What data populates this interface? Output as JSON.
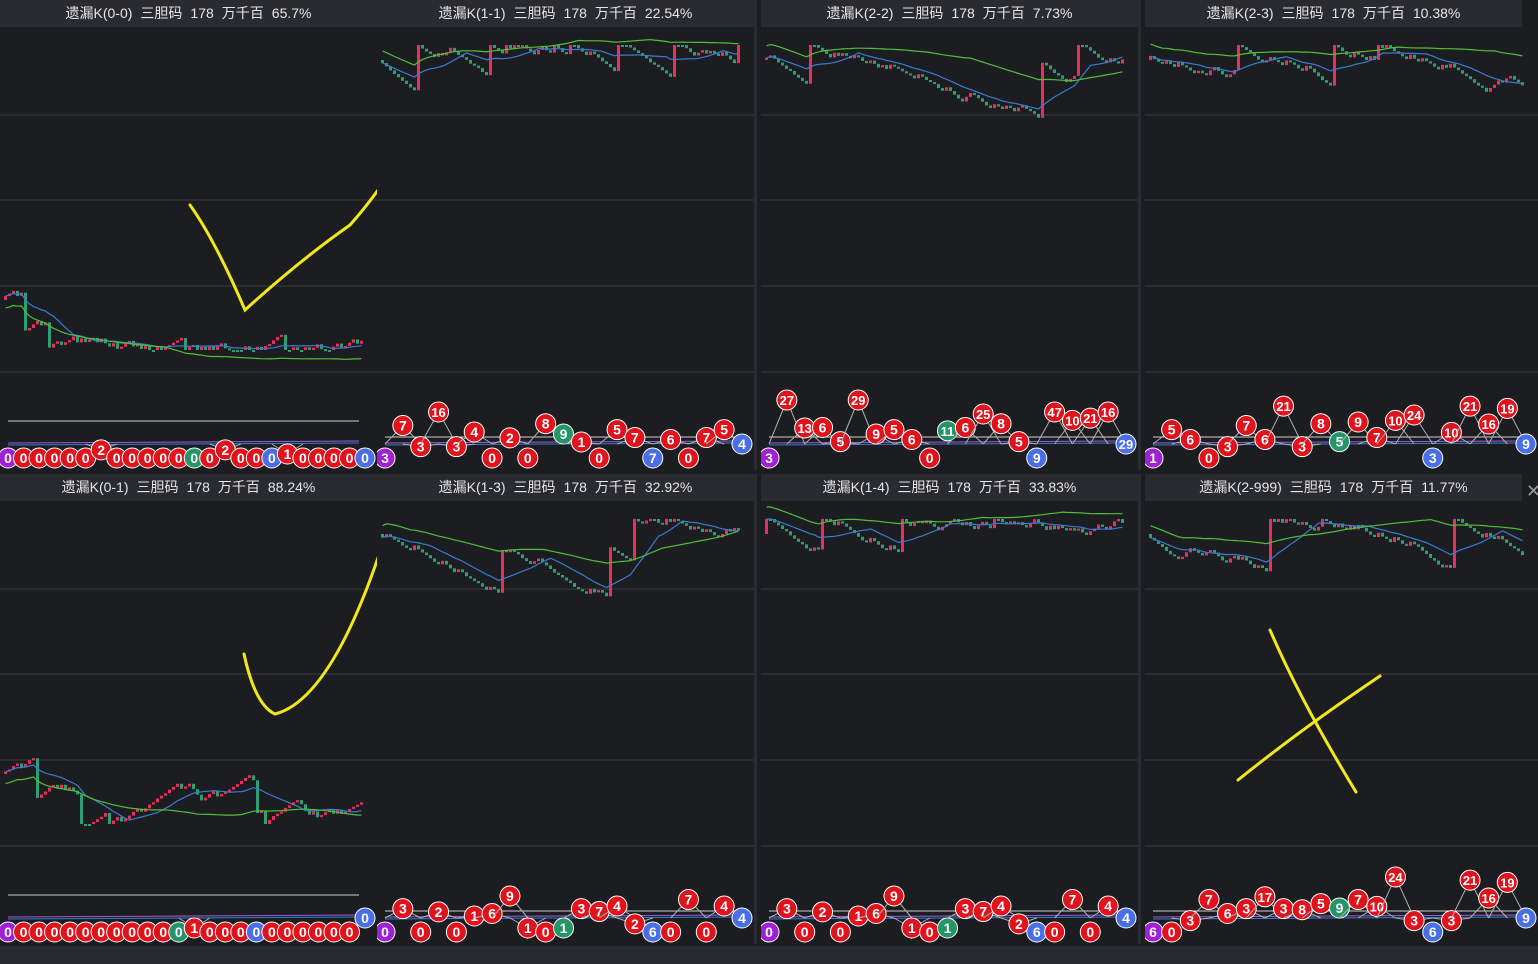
{
  "panels": [
    {
      "title": "遗漏K(0-0)",
      "code": "三胆码",
      "num": "178",
      "pos": "万千百",
      "pct": "65.7%",
      "bubbles": [
        0,
        0,
        0,
        0,
        0,
        0,
        2,
        0,
        0,
        0,
        0,
        0,
        0,
        0,
        2,
        0,
        0,
        0,
        1,
        0,
        0,
        0,
        0,
        0
      ],
      "bubble_types": [
        "p",
        "r",
        "r",
        "r",
        "r",
        "r",
        "r",
        "r",
        "r",
        "r",
        "r",
        "r",
        "g",
        "r",
        "r",
        "r",
        "r",
        "b",
        "r",
        "r",
        "r",
        "r",
        "r",
        "b"
      ]
    },
    {
      "title": "遗漏K(1-1)",
      "code": "三胆码",
      "num": "178",
      "pos": "万千百",
      "pct": "22.54%",
      "bubbles": [
        3,
        7,
        3,
        16,
        3,
        4,
        0,
        2,
        0,
        8,
        9,
        1,
        0,
        5,
        7,
        7,
        6,
        0,
        7,
        5,
        4
      ],
      "bubble_types": [
        "p",
        "r",
        "r",
        "r",
        "r",
        "r",
        "r",
        "r",
        "r",
        "r",
        "g",
        "r",
        "r",
        "r",
        "r",
        "b",
        "r",
        "r",
        "r",
        "r",
        "b"
      ]
    },
    {
      "title": "遗漏K(2-2)",
      "code": "三胆码",
      "num": "178",
      "pos": "万千百",
      "pct": "7.73%",
      "bubbles": [
        3,
        27,
        13,
        6,
        5,
        29,
        9,
        5,
        6,
        0,
        11,
        6,
        25,
        8,
        5,
        9,
        47,
        10,
        21,
        16,
        29
      ],
      "bubble_types": [
        "p",
        "r",
        "r",
        "r",
        "r",
        "r",
        "r",
        "r",
        "r",
        "r",
        "g",
        "r",
        "r",
        "r",
        "r",
        "b",
        "r",
        "r",
        "r",
        "r",
        "b"
      ]
    },
    {
      "title": "遗漏K(2-3)",
      "code": "三胆码",
      "num": "178",
      "pos": "万千百",
      "pct": "10.38%",
      "bubbles": [
        1,
        5,
        6,
        0,
        3,
        7,
        6,
        21,
        3,
        8,
        5,
        9,
        7,
        10,
        24,
        3,
        10,
        21,
        16,
        19,
        9
      ],
      "bubble_types": [
        "p",
        "r",
        "r",
        "r",
        "r",
        "r",
        "r",
        "r",
        "r",
        "r",
        "g",
        "r",
        "r",
        "r",
        "r",
        "b",
        "r",
        "r",
        "r",
        "r",
        "b"
      ]
    },
    {
      "title": "遗漏K(0-1)",
      "code": "三胆码",
      "num": "178",
      "pos": "万千百",
      "pct": "88.24%",
      "bubbles": [
        0,
        0,
        0,
        0,
        0,
        0,
        0,
        0,
        0,
        0,
        0,
        0,
        1,
        0,
        0,
        0,
        0,
        0,
        0,
        0,
        0,
        0,
        0,
        0
      ],
      "bubble_types": [
        "p",
        "r",
        "r",
        "r",
        "r",
        "r",
        "r",
        "r",
        "r",
        "r",
        "r",
        "g",
        "r",
        "r",
        "r",
        "r",
        "b",
        "r",
        "r",
        "r",
        "r",
        "r",
        "r",
        "b"
      ]
    },
    {
      "title": "遗漏K(1-3)",
      "code": "三胆码",
      "num": "178",
      "pos": "万千百",
      "pct": "32.92%",
      "bubbles": [
        0,
        3,
        0,
        2,
        0,
        1,
        6,
        9,
        1,
        0,
        1,
        3,
        7,
        4,
        2,
        6,
        0,
        7,
        0,
        4,
        4
      ],
      "bubble_types": [
        "p",
        "r",
        "r",
        "r",
        "r",
        "r",
        "r",
        "r",
        "r",
        "r",
        "g",
        "r",
        "r",
        "r",
        "r",
        "b",
        "r",
        "r",
        "r",
        "r",
        "b"
      ]
    },
    {
      "title": "遗漏K(1-4)",
      "code": "三胆码",
      "num": "178",
      "pos": "万千百",
      "pct": "33.83%",
      "bubbles": [
        0,
        3,
        0,
        2,
        0,
        1,
        6,
        9,
        1,
        0,
        1,
        3,
        7,
        4,
        2,
        6,
        0,
        7,
        0,
        4,
        4
      ],
      "bubble_types": [
        "p",
        "r",
        "r",
        "r",
        "r",
        "r",
        "r",
        "r",
        "r",
        "r",
        "g",
        "r",
        "r",
        "r",
        "r",
        "b",
        "r",
        "r",
        "r",
        "r",
        "b"
      ]
    },
    {
      "title": "遗漏K(2-999)",
      "code": "三胆码",
      "num": "178",
      "pos": "万千百",
      "pct": "11.77%",
      "bubbles": [
        6,
        0,
        3,
        7,
        6,
        3,
        17,
        3,
        8,
        5,
        9,
        7,
        10,
        24,
        3,
        6,
        3,
        21,
        16,
        19,
        9
      ],
      "bubble_types": [
        "p",
        "r",
        "r",
        "r",
        "r",
        "r",
        "r",
        "r",
        "r",
        "r",
        "g",
        "r",
        "r",
        "r",
        "r",
        "b",
        "r",
        "r",
        "r",
        "r",
        "b"
      ]
    }
  ],
  "colors": {
    "up": "#e8305a",
    "down": "#2e9e73",
    "ma_fast": "#3a7bd5",
    "ma_slow": "#4fbf3a",
    "bubble_red": "#e0121b",
    "bubble_green": "#239566",
    "bubble_blue": "#4a6ee8",
    "bubble_purple": "#a020d8",
    "annotation": "#f2e818"
  }
}
